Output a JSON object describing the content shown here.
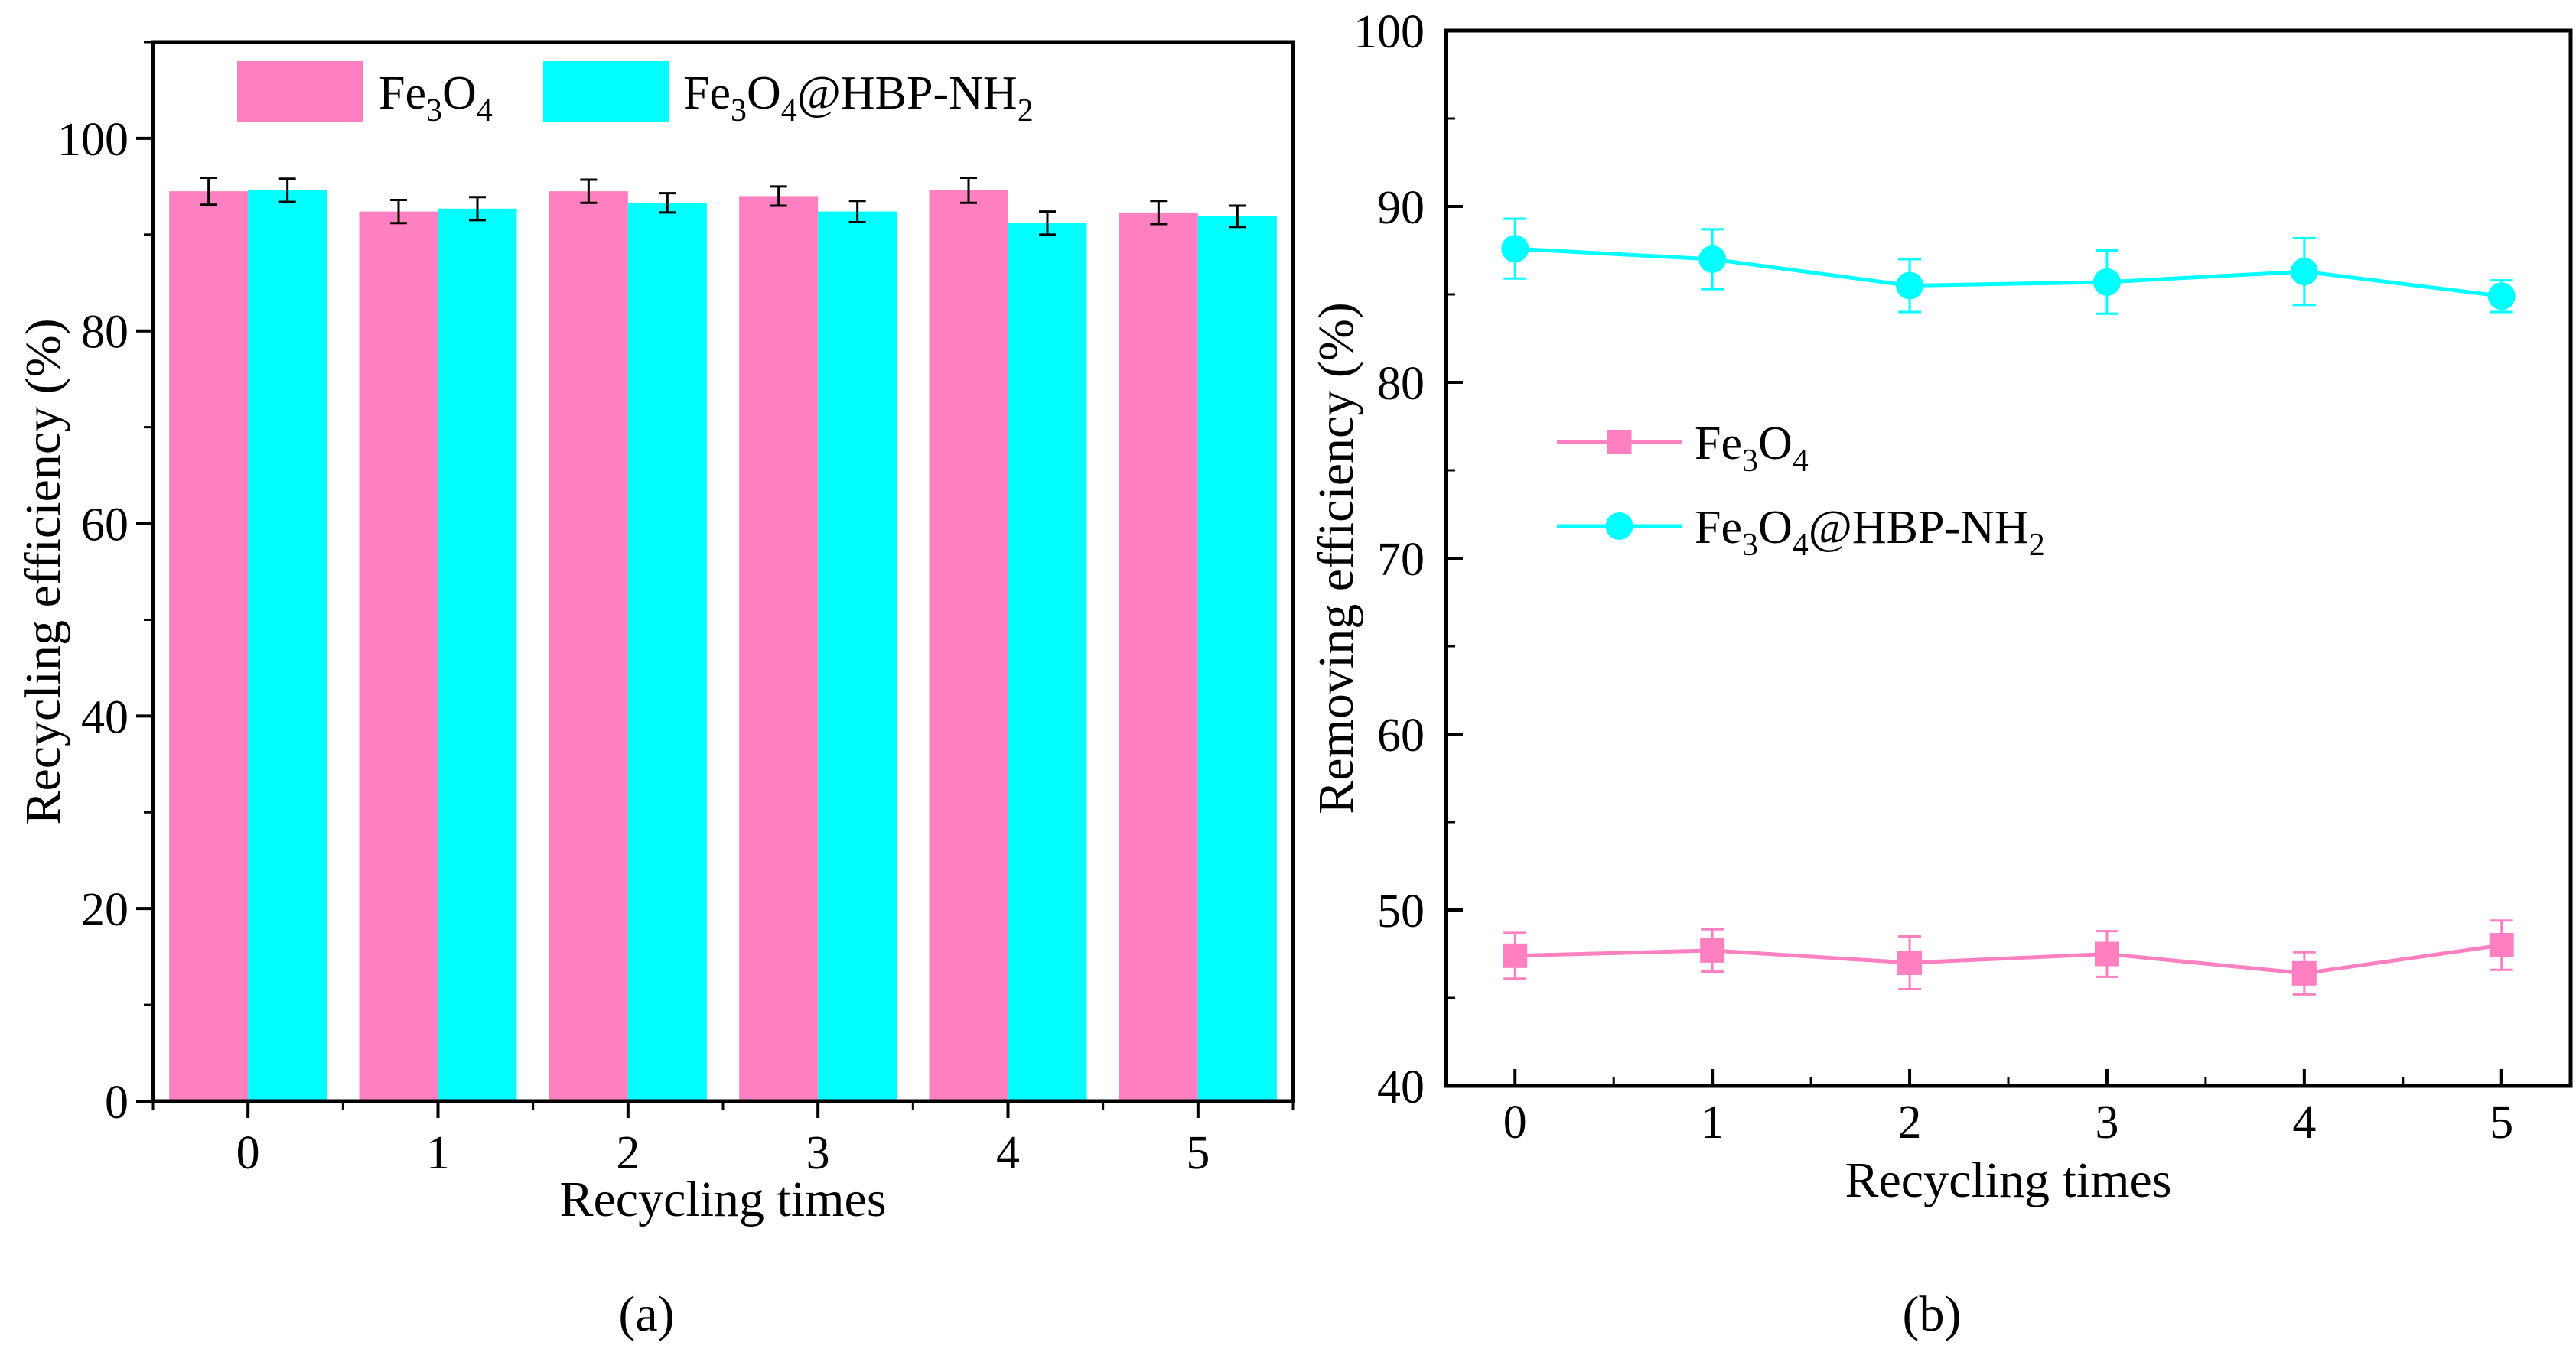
{
  "figure": {
    "panel_a_caption": "(a)",
    "panel_b_caption": "(b)"
  },
  "chart_data": [
    {
      "type": "bar",
      "panel": "(a)",
      "title": "",
      "xlabel": "Recycling times",
      "ylabel": "Recycling efficiency (%)",
      "categories": [
        "0",
        "1",
        "2",
        "3",
        "4",
        "5"
      ],
      "ylim": [
        0,
        110
      ],
      "yticks": [
        0,
        20,
        40,
        60,
        80,
        100
      ],
      "ytick_labels": [
        "0",
        "20",
        "40",
        "60",
        "80",
        "100"
      ],
      "grid": false,
      "legend_position": "top-center",
      "series": [
        {
          "name": "Fe3O4",
          "legend_base": [
            "Fe",
            "3",
            "O",
            "4",
            ""
          ],
          "color": "#ff80c0",
          "values": [
            94.5,
            92.4,
            94.5,
            94.0,
            94.6,
            92.3
          ],
          "errors": [
            1.4,
            1.2,
            1.2,
            1.0,
            1.3,
            1.2
          ]
        },
        {
          "name": "Fe3O4@HBP-NH2",
          "legend_base": [
            "Fe",
            "3",
            "O",
            "4",
            "@HBP-NH",
            "2"
          ],
          "color": "#00ffff",
          "values": [
            94.6,
            92.7,
            93.3,
            92.4,
            91.2,
            91.9
          ],
          "errors": [
            1.2,
            1.2,
            1.0,
            1.1,
            1.2,
            1.1
          ]
        }
      ]
    },
    {
      "type": "line",
      "panel": "(b)",
      "title": "",
      "xlabel": "Recycling times",
      "ylabel": "Removing efficiency (%)",
      "x": [
        0,
        1,
        2,
        3,
        4,
        5
      ],
      "xtick_labels": [
        "0",
        "1",
        "2",
        "3",
        "4",
        "5"
      ],
      "xlim": [
        -0.35,
        5.35
      ],
      "ylim": [
        40,
        100
      ],
      "yticks": [
        40,
        50,
        60,
        70,
        80,
        90,
        100
      ],
      "ytick_labels": [
        "40",
        "50",
        "60",
        "70",
        "80",
        "90",
        "100"
      ],
      "grid": false,
      "legend_position": "center-left",
      "series": [
        {
          "name": "Fe3O4",
          "legend_base": [
            "Fe",
            "3",
            "O",
            "4",
            ""
          ],
          "color": "#ff80c0",
          "marker": "square",
          "values": [
            47.4,
            47.7,
            47.0,
            47.5,
            46.4,
            48.0
          ],
          "errors": [
            1.3,
            1.2,
            1.5,
            1.3,
            1.2,
            1.4
          ]
        },
        {
          "name": "Fe3O4@HBP-NH2",
          "legend_base": [
            "Fe",
            "3",
            "O",
            "4",
            "@HBP-NH",
            "2"
          ],
          "color": "#00ffff",
          "marker": "circle",
          "values": [
            87.6,
            87.0,
            85.5,
            85.7,
            86.3,
            84.9
          ],
          "errors": [
            1.7,
            1.7,
            1.5,
            1.8,
            1.9,
            0.9
          ]
        }
      ]
    }
  ]
}
